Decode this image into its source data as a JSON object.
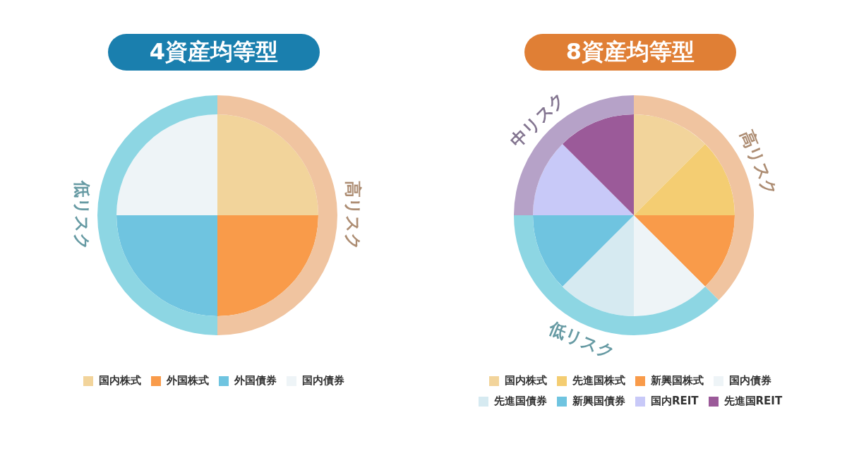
{
  "chart_data": [
    {
      "type": "pie",
      "title": "4資産均等型",
      "categories": [
        "国内株式",
        "外国株式",
        "外国債券",
        "国内債券"
      ],
      "values": [
        25,
        25,
        25,
        25
      ],
      "colors": [
        "#f2d49b",
        "#f99b4a",
        "#6fc4e0",
        "#eef4f7"
      ],
      "legend": "bottom"
    },
    {
      "type": "donut",
      "categories": [
        "高リスク",
        "低リスク"
      ],
      "values": [
        50,
        50
      ],
      "colors": [
        "#f0c4a0",
        "#8dd6e3"
      ]
    },
    {
      "type": "pie",
      "title": "8資産均等型",
      "categories": [
        "国内株式",
        "先進国株式",
        "新興国株式",
        "国内債券",
        "先進国債券",
        "新興国債券",
        "国内REIT",
        "先進国REIT"
      ],
      "values": [
        12.5,
        12.5,
        12.5,
        12.5,
        12.5,
        12.5,
        12.5,
        12.5
      ],
      "colors": [
        "#f2d49b",
        "#f4cd72",
        "#f99b4a",
        "#eef4f7",
        "#d6eaf1",
        "#6fc4e0",
        "#c8c9f8",
        "#9b5a99"
      ],
      "legend": "bottom"
    },
    {
      "type": "donut",
      "categories": [
        "高リスク",
        "低リスク",
        "中リスク"
      ],
      "values": [
        37.5,
        37.5,
        25
      ],
      "colors": [
        "#f0c4a0",
        "#8dd6e3",
        "#b6a2c8"
      ]
    }
  ]
}
